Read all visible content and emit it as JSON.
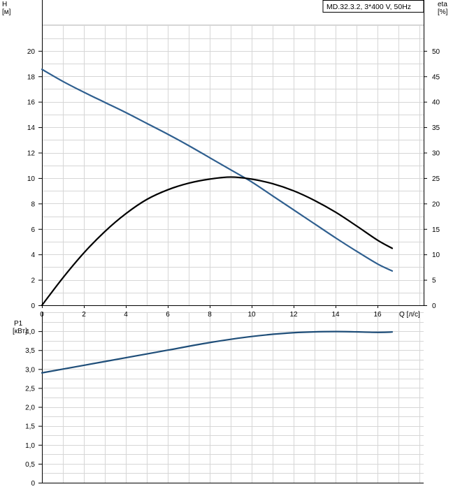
{
  "chart_data": [
    {
      "type": "line",
      "legend": "MD.32.3.2, 3*400 V, 50Hz",
      "xlabel": "Q [л/с]",
      "ylabel_left": {
        "name": "H",
        "unit": "[м]"
      },
      "ylabel_right": {
        "name": "eta",
        "unit": "[%]"
      },
      "xlim": [
        0,
        18.2
      ],
      "ylim_left": [
        0,
        24
      ],
      "ylim_right": [
        0,
        60
      ],
      "x_ticks": [
        "0",
        "2",
        "4",
        "6",
        "8",
        "10",
        "12",
        "14",
        "16"
      ],
      "y_left_ticks": [
        "0",
        "2",
        "4",
        "6",
        "8",
        "10",
        "12",
        "14",
        "16",
        "18",
        "20"
      ],
      "y_right_ticks": [
        "0",
        "5",
        "10",
        "15",
        "20",
        "25",
        "30",
        "35",
        "40",
        "45",
        "50"
      ],
      "grid": true,
      "series": [
        {
          "axis": "left",
          "color": "#2f5f8f",
          "x": [
            0,
            1,
            2,
            3,
            4,
            5,
            6,
            7,
            8,
            9,
            10,
            11,
            12,
            13,
            14,
            15,
            16,
            16.7
          ],
          "y": [
            18.55,
            17.6,
            16.75,
            15.95,
            15.15,
            14.3,
            13.45,
            12.55,
            11.6,
            10.65,
            9.7,
            8.6,
            7.5,
            6.4,
            5.3,
            4.25,
            3.25,
            2.7
          ]
        },
        {
          "axis": "right",
          "color": "#000000",
          "x": [
            0,
            1,
            2,
            3,
            4,
            5,
            6,
            7,
            8,
            9,
            10,
            11,
            12,
            13,
            14,
            15,
            16,
            16.7
          ],
          "y": [
            0,
            5.4,
            10.3,
            14.5,
            18.0,
            20.8,
            22.7,
            24.0,
            24.8,
            25.2,
            24.8,
            23.9,
            22.5,
            20.6,
            18.3,
            15.6,
            12.8,
            11.2
          ]
        }
      ]
    },
    {
      "type": "line",
      "ylabel": {
        "name": "P1",
        "unit": "[кВт]"
      },
      "xlim": [
        0,
        18.2
      ],
      "ylim": [
        0,
        4.5
      ],
      "y_ticks": [
        "0",
        "0,5",
        "1,0",
        "1,5",
        "2,0",
        "2,5",
        "3,0",
        "3,5",
        "4,0"
      ],
      "grid": true,
      "series": [
        {
          "color": "#1f4e79",
          "x": [
            0,
            2,
            4,
            6,
            8,
            10,
            12,
            14,
            16,
            16.7
          ],
          "y": [
            2.9,
            3.1,
            3.3,
            3.5,
            3.7,
            3.86,
            3.96,
            3.99,
            3.97,
            3.98
          ]
        }
      ]
    }
  ]
}
